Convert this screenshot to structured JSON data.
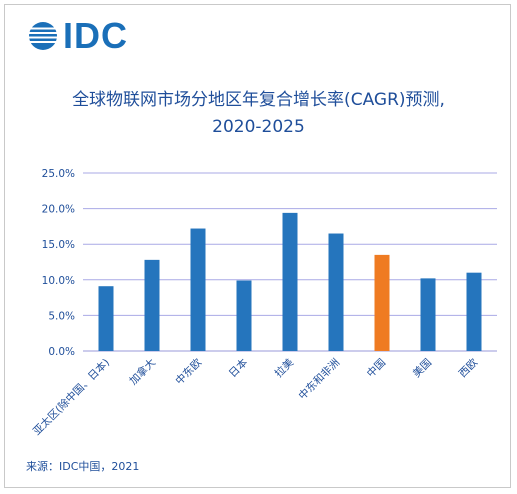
{
  "logo": {
    "text": "IDC",
    "color": "#1a6fb8"
  },
  "title_line1": "全球物联网市场分地区年复合增长率(CAGR)预测,",
  "title_line2": "2020-2025",
  "source": "来源：IDC中国，2021",
  "chart_data": {
    "type": "bar",
    "title": "全球物联网市场分地区年复合增长率(CAGR)预测, 2020-2025",
    "categories": [
      "亚太区(除中国、日本)",
      "加拿大",
      "中东欧",
      "日本",
      "拉美",
      "中东和非洲",
      "中国",
      "美国",
      "西欧"
    ],
    "values": [
      9.1,
      12.8,
      17.2,
      9.9,
      19.4,
      16.5,
      13.5,
      10.2,
      11.0
    ],
    "unit": "%",
    "ylim": [
      0,
      25
    ],
    "yticks": [
      "0.0%",
      "5.0%",
      "10.0%",
      "15.0%",
      "20.0%",
      "25.0%"
    ],
    "grid": true,
    "colors": {
      "default": "#2575bd",
      "highlight": "#ef7b22",
      "grid": "#a9a9e6"
    },
    "highlight_category": "中国"
  }
}
